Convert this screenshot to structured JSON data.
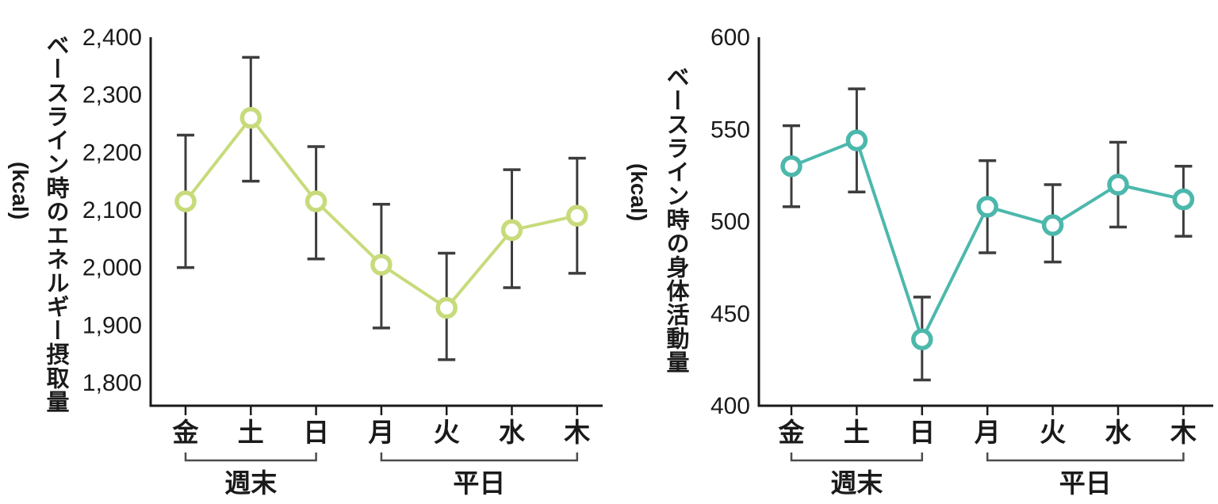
{
  "figure": {
    "kind": "dual line charts with error bars",
    "background_color": "#ffffff",
    "axis_color": "#1a1a1a",
    "error_bar_color": "#3d3d3d",
    "bracket_color": "#4d4d4d"
  },
  "chart_data": [
    {
      "type": "line",
      "title": "",
      "ylabel": "ベースライン時のエネルギー摂取量",
      "y_unit": "(kcal)",
      "line_color": "#c7db7b",
      "marker_fill": "#ffffff",
      "ylim": [
        1760,
        2400
      ],
      "grid": false,
      "yticks": [
        {
          "label": "2,400",
          "value": 2400
        },
        {
          "label": "2,300",
          "value": 2300
        },
        {
          "label": "2,200",
          "value": 2200
        },
        {
          "label": "2,100",
          "value": 2100
        },
        {
          "label": "2,000",
          "value": 2000
        },
        {
          "label": "1,900",
          "value": 1900
        },
        {
          "label": "1,800",
          "value": 1800
        }
      ],
      "categories": [
        "金",
        "土",
        "日",
        "月",
        "火",
        "水",
        "木"
      ],
      "groups": [
        {
          "label": "週末",
          "from": 0,
          "to": 2
        },
        {
          "label": "平日",
          "from": 3,
          "to": 6
        }
      ],
      "points": [
        {
          "day": "金",
          "mean": 2115,
          "ci_low": 2000,
          "ci_high": 2230
        },
        {
          "day": "土",
          "mean": 2260,
          "ci_low": 2150,
          "ci_high": 2365
        },
        {
          "day": "日",
          "mean": 2115,
          "ci_low": 2015,
          "ci_high": 2210
        },
        {
          "day": "月",
          "mean": 2005,
          "ci_low": 1895,
          "ci_high": 2110
        },
        {
          "day": "火",
          "mean": 1930,
          "ci_low": 1840,
          "ci_high": 2025
        },
        {
          "day": "水",
          "mean": 2065,
          "ci_low": 1965,
          "ci_high": 2170
        },
        {
          "day": "木",
          "mean": 2090,
          "ci_low": 1990,
          "ci_high": 2190
        }
      ]
    },
    {
      "type": "line",
      "title": "",
      "ylabel": "ベースライン時の身体活動量",
      "y_unit": "(kcal)",
      "line_color": "#4cb8ac",
      "marker_fill": "#ffffff",
      "ylim": [
        400,
        600
      ],
      "grid": false,
      "yticks": [
        {
          "label": "600",
          "value": 600
        },
        {
          "label": "550",
          "value": 550
        },
        {
          "label": "500",
          "value": 500
        },
        {
          "label": "450",
          "value": 450
        },
        {
          "label": "400",
          "value": 400
        }
      ],
      "categories": [
        "金",
        "土",
        "日",
        "月",
        "火",
        "水",
        "木"
      ],
      "groups": [
        {
          "label": "週末",
          "from": 0,
          "to": 2
        },
        {
          "label": "平日",
          "from": 3,
          "to": 6
        }
      ],
      "points": [
        {
          "day": "金",
          "mean": 530,
          "ci_low": 508,
          "ci_high": 552
        },
        {
          "day": "土",
          "mean": 544,
          "ci_low": 516,
          "ci_high": 572
        },
        {
          "day": "日",
          "mean": 436,
          "ci_low": 414,
          "ci_high": 459
        },
        {
          "day": "月",
          "mean": 508,
          "ci_low": 483,
          "ci_high": 533
        },
        {
          "day": "火",
          "mean": 498,
          "ci_low": 478,
          "ci_high": 520
        },
        {
          "day": "水",
          "mean": 520,
          "ci_low": 497,
          "ci_high": 543
        },
        {
          "day": "木",
          "mean": 512,
          "ci_low": 492,
          "ci_high": 530
        }
      ]
    }
  ]
}
